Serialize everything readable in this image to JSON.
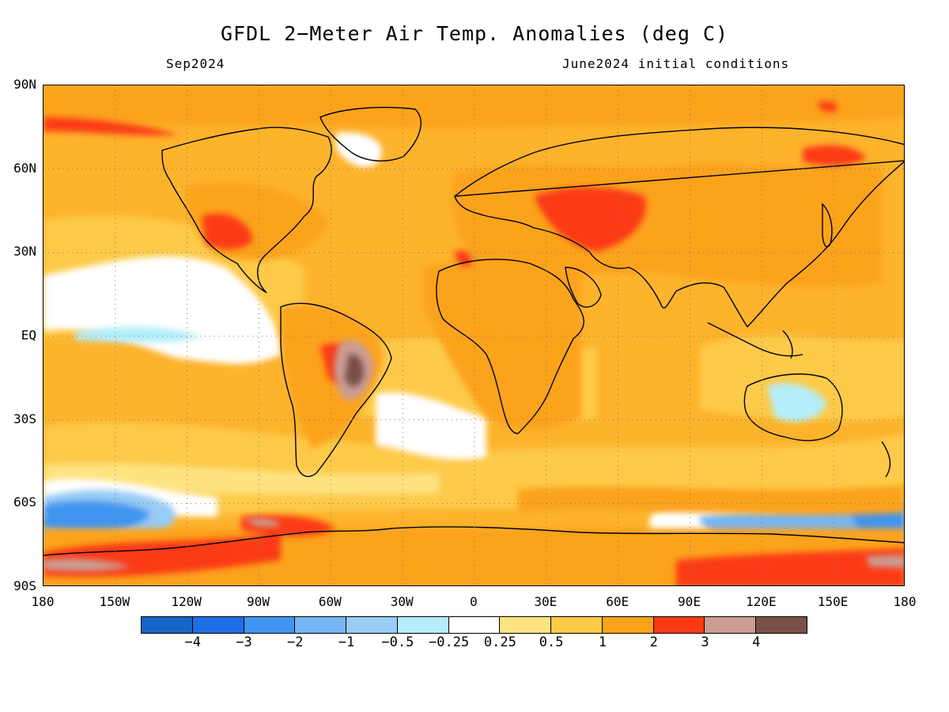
{
  "header": {
    "title": "GFDL 2−Meter Air Temp. Anomalies (deg C)",
    "valid_month": "Sep2024",
    "init_conditions": "June2024 initial conditions"
  },
  "axes": {
    "lat_labels": [
      "90N",
      "60N",
      "30N",
      "EQ",
      "30S",
      "60S",
      "90S"
    ],
    "lon_labels": [
      "180",
      "150W",
      "120W",
      "90W",
      "60W",
      "30W",
      "0",
      "30E",
      "60E",
      "90E",
      "120E",
      "150E",
      "180"
    ]
  },
  "colorbar": {
    "colors": [
      "#1565c8",
      "#1e6ee6",
      "#3f95f0",
      "#76b5f4",
      "#98cbf5",
      "#b4eefa",
      "#ffffff",
      "#ffe381",
      "#fdca48",
      "#fca31a",
      "#fb3a13",
      "#cb9d93",
      "#7a5046"
    ],
    "labels": [
      "−4",
      "−3",
      "−2",
      "−1",
      "−0.5",
      "−0.25",
      "0.25",
      "0.5",
      "1",
      "2",
      "3",
      "4"
    ]
  },
  "map": {
    "projection": "cylindrical equidistant",
    "lon_range": [
      -180,
      180
    ],
    "lat_range": [
      -90,
      90
    ],
    "gridlines": "dotted every 30 degrees"
  }
}
